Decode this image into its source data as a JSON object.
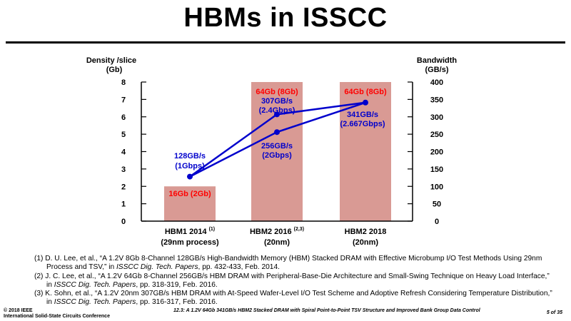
{
  "slide": {
    "title": "HBMs in ISSCC"
  },
  "chart_data": {
    "type": "bar+line",
    "left_axis": {
      "label_line1": "Density /slice",
      "label_line2": "(Gb)",
      "ylim": [
        0,
        8
      ],
      "ticks": [
        "0",
        "1",
        "2",
        "3",
        "4",
        "5",
        "6",
        "7",
        "8"
      ]
    },
    "right_axis": {
      "label_line1": "Bandwidth",
      "label_line2": "(GB/s)",
      "ylim": [
        0,
        400
      ],
      "ticks": [
        "0",
        "50",
        "100",
        "150",
        "200",
        "250",
        "300",
        "350",
        "400"
      ]
    },
    "categories": [
      {
        "line1": "HBM1 2014",
        "sup": "(1)",
        "line2": "(29nm process)"
      },
      {
        "line1": "HBM2 2016",
        "sup": "(2,3)",
        "line2": "(20nm)"
      },
      {
        "line1": "HBM2 2018",
        "sup": "",
        "line2": "(20nm)"
      }
    ],
    "bars": [
      {
        "value": 2,
        "label": "16Gb (2Gb)"
      },
      {
        "value": 8,
        "label": "64Gb (8Gb)"
      },
      {
        "value": 8,
        "label": "64Gb (8Gb)"
      }
    ],
    "bandwidth_points": [
      {
        "name": "p2014",
        "category": 0,
        "value": 128,
        "label_line1": "128GB/s",
        "label_line2": "(1Gbps)"
      },
      {
        "name": "p2016a",
        "category": 1,
        "value": 307,
        "label_line1": "307GB/s",
        "label_line2": "(2.4Gbps)"
      },
      {
        "name": "p2016b",
        "category": 1,
        "value": 256,
        "label_line1": "256GB/s",
        "label_line2": "(2Gbps)"
      },
      {
        "name": "p2018",
        "category": 2,
        "value": 341,
        "label_line1": "341GB/s",
        "label_line2": "(2.667Gbps)"
      }
    ],
    "bandwidth_lines": [
      [
        "p2014",
        "p2016a",
        "p2018"
      ],
      [
        "p2014",
        "p2016b",
        "p2018"
      ]
    ],
    "colors": {
      "bar": "#d99a94",
      "bar_label": "#ff0000",
      "line": "#0000cc",
      "axis": "#000000"
    }
  },
  "references": [
    {
      "line1": "(1) D. U. Lee, et al., “A 1.2V 8Gb 8-Channel 128GB/s High-Bandwidth Memory (HBM) Stacked DRAM with Effective Microbump I/O Test Methods Using 29nm",
      "line2a": "Process and TSV,” in ",
      "line2i": "ISSCC Dig. Tech. Papers",
      "line2b": ", pp. 432-433, Feb. 2014."
    },
    {
      "line1": "(2) J. C. Lee, et al., “A 1.2V 64Gb 8-Channel 256GB/s HBM DRAM with Peripheral-Base-Die Architecture and Small-Swing Technique on Heavy Load Interface,”",
      "line2a": "in ",
      "line2i": "ISSCC Dig. Tech. Papers",
      "line2b": ", pp. 318-319, Feb. 2016."
    },
    {
      "line1": "(3) K. Sohn, et al., “A 1.2V 20nm 307GB/s HBM DRAM with At-Speed Wafer-Level I/O Test Scheme and Adoptive Refresh Considering Temperature Distribution,”",
      "line2a": "in ",
      "line2i": "ISSCC Dig. Tech. Papers",
      "line2b": ", pp. 316-317, Feb. 2016."
    }
  ],
  "footer": {
    "copyright": "© 2018 IEEE",
    "conference": "International Solid-State Circuits Conference",
    "paper": "12.3: A 1.2V 64Gb 341GB/s HBM2 Stacked DRAM with Spiral Point-to-Point TSV Structure and Improved Bank Group Data Control",
    "page": "5 of 35"
  }
}
